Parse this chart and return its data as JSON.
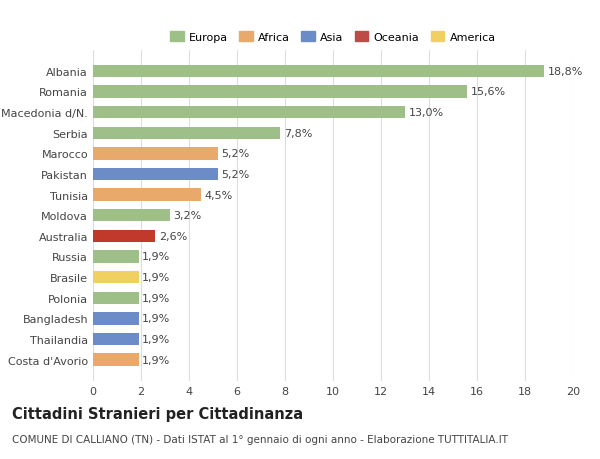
{
  "categories": [
    "Costa d'Avorio",
    "Thailandia",
    "Bangladesh",
    "Polonia",
    "Brasile",
    "Russia",
    "Australia",
    "Moldova",
    "Tunisia",
    "Pakistan",
    "Marocco",
    "Serbia",
    "Macedonia d/N.",
    "Romania",
    "Albania"
  ],
  "values": [
    1.9,
    1.9,
    1.9,
    1.9,
    1.9,
    1.9,
    2.6,
    3.2,
    4.5,
    5.2,
    5.2,
    7.8,
    13.0,
    15.6,
    18.8
  ],
  "colors": [
    "#E8A96A",
    "#6B8CC7",
    "#6B8CC7",
    "#9EBF87",
    "#F0D060",
    "#9EBF87",
    "#C0392B",
    "#9EBF87",
    "#E8A96A",
    "#6B8CC7",
    "#E8A96A",
    "#9EBF87",
    "#9EBF87",
    "#9EBF87",
    "#9EBF87"
  ],
  "labels": [
    "1,9%",
    "1,9%",
    "1,9%",
    "1,9%",
    "1,9%",
    "1,9%",
    "2,6%",
    "3,2%",
    "4,5%",
    "5,2%",
    "5,2%",
    "7,8%",
    "13,0%",
    "15,6%",
    "18,8%"
  ],
  "legend": [
    {
      "label": "Europa",
      "color": "#9EBF87"
    },
    {
      "label": "Africa",
      "color": "#E8A96A"
    },
    {
      "label": "Asia",
      "color": "#6B8CC7"
    },
    {
      "label": "Oceania",
      "color": "#BE4B48"
    },
    {
      "label": "America",
      "color": "#F0D060"
    }
  ],
  "title": "Cittadini Stranieri per Cittadinanza",
  "subtitle": "COMUNE DI CALLIANO (TN) - Dati ISTAT al 1° gennaio di ogni anno - Elaborazione TUTTITALIA.IT",
  "xlim": [
    0,
    20
  ],
  "xticks": [
    0,
    2,
    4,
    6,
    8,
    10,
    12,
    14,
    16,
    18,
    20
  ],
  "background_color": "#ffffff",
  "bar_height": 0.6,
  "grid_color": "#dddddd",
  "text_color": "#444444",
  "label_fontsize": 8,
  "tick_fontsize": 8,
  "title_fontsize": 10.5,
  "subtitle_fontsize": 7.5
}
